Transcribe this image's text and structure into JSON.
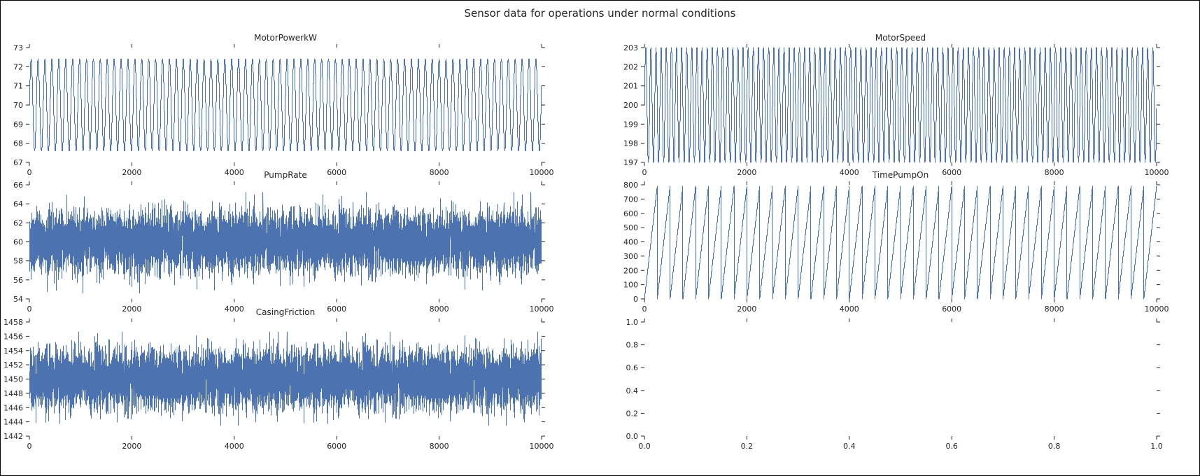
{
  "page": {
    "title": "Sensor data for operations under normal conditions"
  },
  "colors": {
    "line": "#4c72b0",
    "axis": "#262626"
  },
  "chart_data": [
    {
      "type": "line",
      "title": "MotorPowerkW",
      "xlabel": "",
      "ylabel": "",
      "xlim": [
        0,
        10000
      ],
      "ylim": [
        67,
        73
      ],
      "xticks": [
        0,
        2000,
        4000,
        6000,
        8000,
        10000
      ],
      "yticks": [
        67,
        68,
        69,
        70,
        71,
        72,
        73
      ],
      "grid": false,
      "series": [
        {
          "pattern": "sine",
          "n": 10000,
          "period": 135,
          "min": 67.6,
          "max": 72.4
        }
      ]
    },
    {
      "type": "line",
      "title": "MotorSpeed",
      "xlabel": "",
      "ylabel": "",
      "xlim": [
        0,
        10000
      ],
      "ylim": [
        197,
        203
      ],
      "xticks": [
        0,
        2000,
        4000,
        6000,
        8000,
        10000
      ],
      "yticks": [
        197,
        198,
        199,
        200,
        201,
        202,
        203
      ],
      "grid": false,
      "series": [
        {
          "pattern": "sine",
          "n": 10000,
          "period": 100,
          "min": 197,
          "max": 203
        }
      ]
    },
    {
      "type": "line",
      "title": "PumpRate",
      "xlabel": "",
      "ylabel": "",
      "xlim": [
        0,
        10000
      ],
      "ylim": [
        54,
        66
      ],
      "xticks": [
        0,
        2000,
        4000,
        6000,
        8000,
        10000
      ],
      "yticks": [
        54,
        56,
        58,
        60,
        62,
        64,
        66
      ],
      "grid": false,
      "series": [
        {
          "pattern": "noise",
          "n": 10000,
          "mean": 60,
          "sd": 1.5,
          "min": 54.6,
          "max": 65.2
        }
      ]
    },
    {
      "type": "line",
      "title": "TimePumpOn",
      "xlabel": "",
      "ylabel": "",
      "xlim": [
        0,
        10000
      ],
      "ylim": [
        0,
        800
      ],
      "xticks": [
        0,
        2000,
        4000,
        6000,
        8000,
        10000
      ],
      "yticks": [
        0,
        100,
        200,
        300,
        400,
        500,
        600,
        700,
        800
      ],
      "grid": false,
      "series": [
        {
          "pattern": "sawtooth",
          "n": 10000,
          "period": 250,
          "min": 0,
          "max": 790
        }
      ]
    },
    {
      "type": "line",
      "title": "CasingFriction",
      "xlabel": "",
      "ylabel": "",
      "xlim": [
        0,
        10000
      ],
      "ylim": [
        1442,
        1458
      ],
      "xticks": [
        0,
        2000,
        4000,
        6000,
        8000,
        10000
      ],
      "yticks": [
        1442,
        1444,
        1446,
        1448,
        1450,
        1452,
        1454,
        1456,
        1458
      ],
      "grid": false,
      "series": [
        {
          "pattern": "noise",
          "n": 10000,
          "mean": 1450,
          "sd": 2,
          "min": 1443.5,
          "max": 1456.6
        }
      ]
    },
    {
      "type": "line",
      "title": "",
      "xlabel": "",
      "ylabel": "",
      "xlim": [
        0,
        1
      ],
      "ylim": [
        0,
        1
      ],
      "xticks": [
        0.0,
        0.2,
        0.4,
        0.6,
        0.8,
        1.0
      ],
      "yticks": [
        0.0,
        0.2,
        0.4,
        0.6,
        0.8,
        1.0
      ],
      "decimals": 1,
      "grid": false,
      "series": []
    }
  ]
}
